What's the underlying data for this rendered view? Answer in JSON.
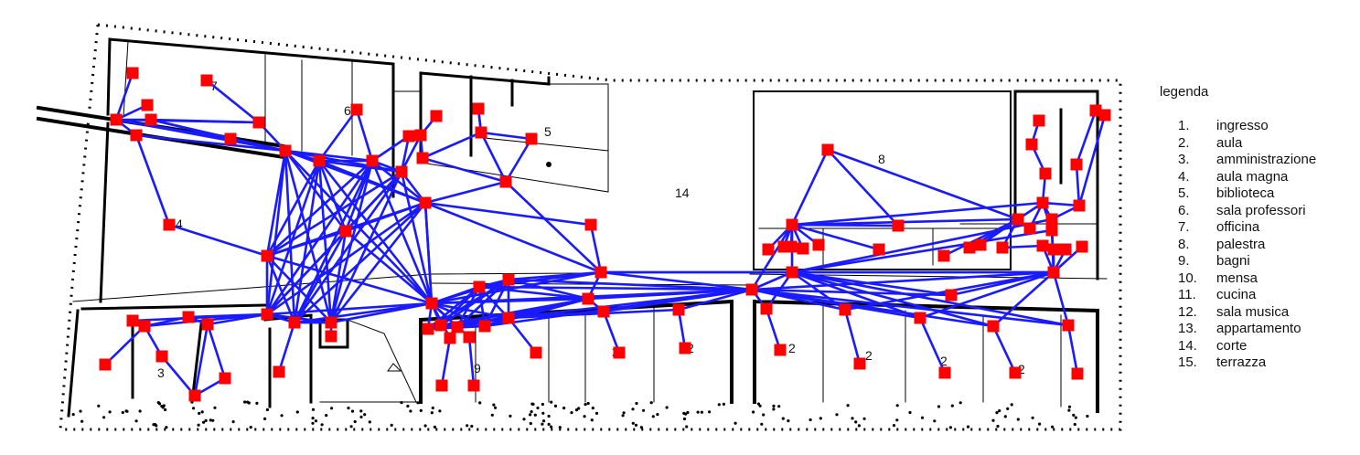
{
  "diagram": {
    "room_numbers": [
      "6",
      "7",
      "5",
      "14",
      "8",
      "4",
      "3",
      "9",
      "2",
      "2",
      "2",
      "2",
      "2",
      "2"
    ],
    "edge_color": "#1a1aff",
    "node_color": "#ff0000",
    "wall_color": "#000000"
  },
  "legend": {
    "title": "legenda",
    "items": [
      {
        "num": "1.",
        "label": "ingresso"
      },
      {
        "num": "2.",
        "label": "aula"
      },
      {
        "num": "3.",
        "label": "amministrazione"
      },
      {
        "num": "4.",
        "label": "aula magna"
      },
      {
        "num": "5.",
        "label": "biblioteca"
      },
      {
        "num": "6.",
        "label": "sala professori"
      },
      {
        "num": "7.",
        "label": "officina"
      },
      {
        "num": "8.",
        "label": "palestra"
      },
      {
        "num": "9.",
        "label": "bagni"
      },
      {
        "num": "10.",
        "label": "mensa"
      },
      {
        "num": "11.",
        "label": "cucina"
      },
      {
        "num": "12.",
        "label": "sala musica"
      },
      {
        "num": "13.",
        "label": "appartamento"
      },
      {
        "num": "14.",
        "label": "corte"
      },
      {
        "num": "15.",
        "label": "terrazza"
      }
    ]
  }
}
